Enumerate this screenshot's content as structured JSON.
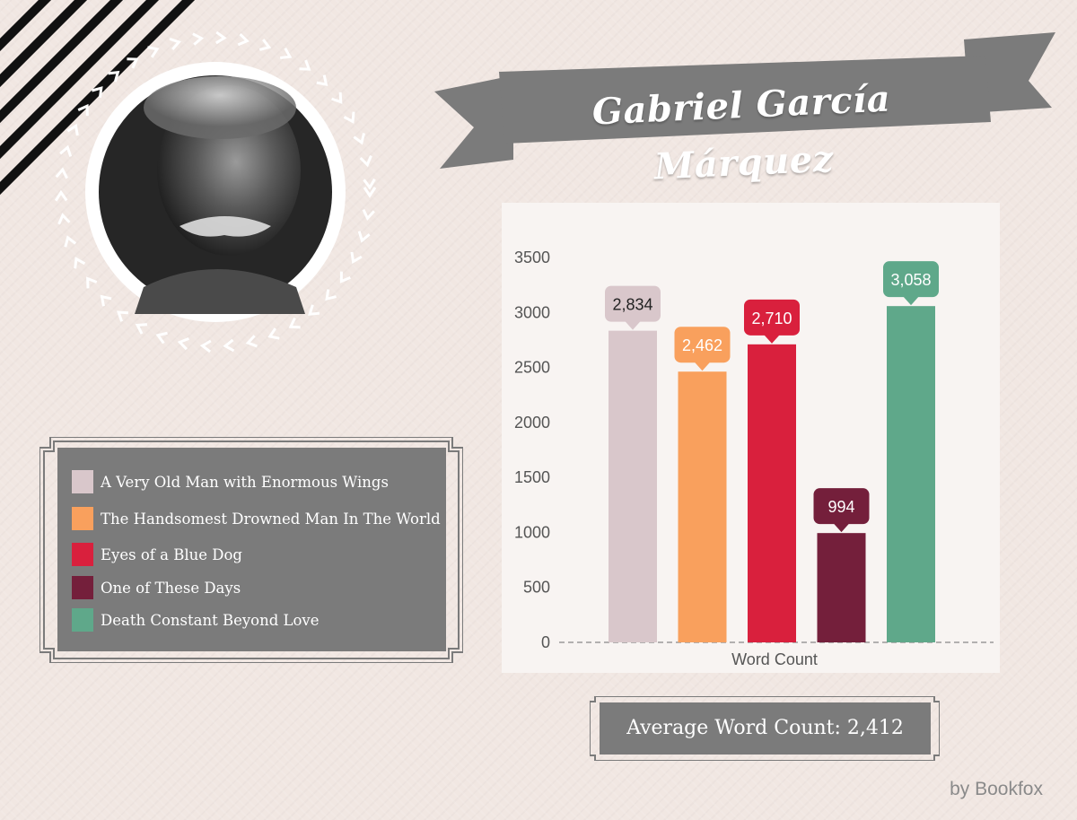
{
  "title": "Gabriel García Márquez",
  "legend": [
    {
      "label": "A Very Old Man with Enormous Wings",
      "color": "#d9c7cb"
    },
    {
      "label": "The Handsomest Drowned Man In The World",
      "color": "#f9a05d"
    },
    {
      "label": "Eyes of a Blue Dog",
      "color": "#d9203d"
    },
    {
      "label": "One of These Days",
      "color": "#741f3b"
    },
    {
      "label": "Death Constant Beyond Love",
      "color": "#5fa88a"
    }
  ],
  "summary": {
    "average_label": "Average Word Count: 2,412"
  },
  "byline": "by Bookfox",
  "chart_data": {
    "type": "bar",
    "title": "",
    "xlabel": "Word Count",
    "ylabel": "",
    "ylim": [
      0,
      3500
    ],
    "yticks": [
      0,
      500,
      1000,
      1500,
      2000,
      2500,
      3000,
      3500
    ],
    "grid": false,
    "categories": [
      "A Very Old Man with Enormous Wings",
      "The Handsomest Drowned Man In The World",
      "Eyes of a Blue Dog",
      "One of These Days",
      "Death Constant Beyond Love"
    ],
    "values": [
      2834,
      2462,
      2710,
      994,
      3058
    ],
    "value_labels": [
      "2,834",
      "2,462",
      "2,710",
      "994",
      "3,058"
    ],
    "colors": [
      "#d9c7cb",
      "#f9a05d",
      "#d9203d",
      "#741f3b",
      "#5fa88a"
    ]
  }
}
